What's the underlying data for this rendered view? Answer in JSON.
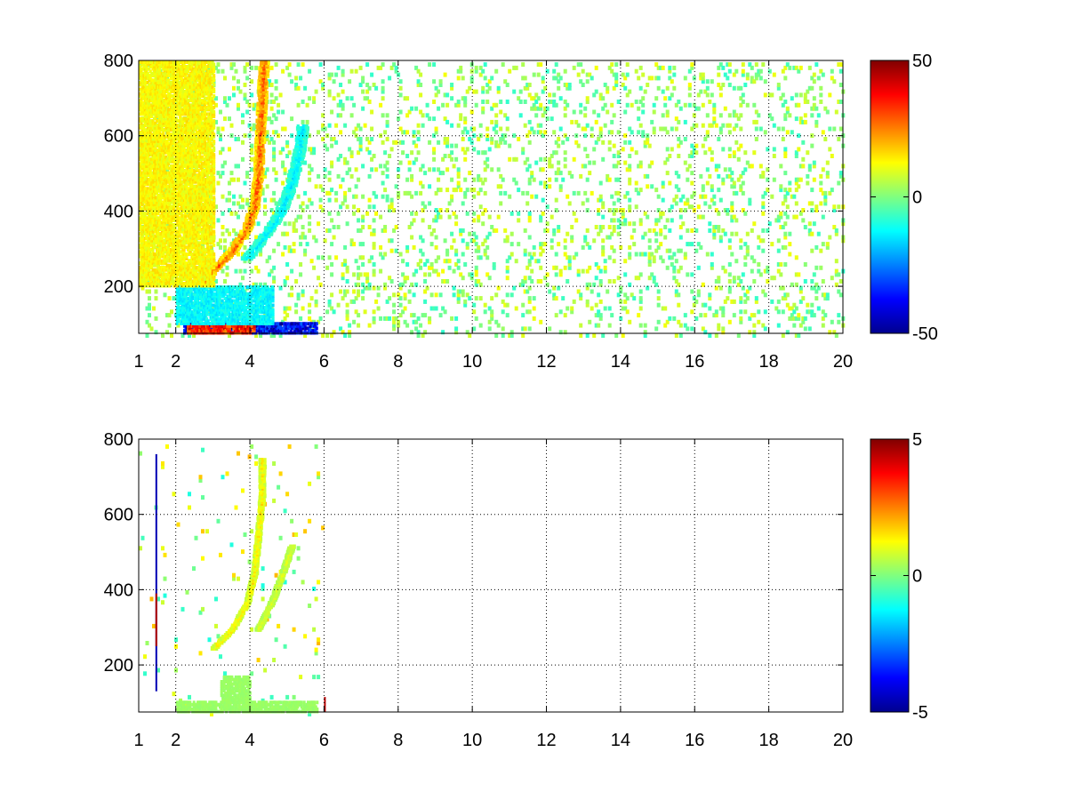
{
  "chart_data": [
    {
      "type": "heatmap",
      "title": "",
      "xlabel": "",
      "ylabel": "",
      "xlim": [
        1,
        20
      ],
      "ylim": [
        75,
        800
      ],
      "x_ticks": [
        {
          "value": 1,
          "label": "1"
        },
        {
          "value": 2,
          "label": "2"
        },
        {
          "value": 4,
          "label": "4"
        },
        {
          "value": 6,
          "label": "6"
        },
        {
          "value": 8,
          "label": "8"
        },
        {
          "value": 10,
          "label": "10"
        },
        {
          "value": 12,
          "label": "12"
        },
        {
          "value": 14,
          "label": "14"
        },
        {
          "value": 16,
          "label": "16"
        },
        {
          "value": 18,
          "label": "18"
        },
        {
          "value": 20,
          "label": "20"
        }
      ],
      "x_grid": [
        2,
        4,
        6,
        8,
        10,
        12,
        14,
        16,
        18
      ],
      "y_ticks": [
        {
          "value": 200,
          "label": "200"
        },
        {
          "value": 400,
          "label": "400"
        },
        {
          "value": 600,
          "label": "600"
        },
        {
          "value": 800,
          "label": "800"
        }
      ],
      "grid": true,
      "colormap": "jet",
      "clim": [
        -50,
        50
      ],
      "colorbar": {
        "position": "right",
        "ticks": [
          {
            "value": 50,
            "label": "50"
          },
          {
            "value": 0,
            "label": "0"
          },
          {
            "value": -50,
            "label": "-50"
          }
        ]
      },
      "features": [
        {
          "kind": "ridge",
          "points": [
            [
              2.6,
              200
            ],
            [
              3.0,
              250
            ],
            [
              3.5,
              300
            ],
            [
              3.9,
              360
            ],
            [
              4.1,
              420
            ],
            [
              4.2,
              500
            ],
            [
              4.25,
              600
            ],
            [
              4.3,
              700
            ],
            [
              4.35,
              800
            ]
          ],
          "value": 30,
          "width": 0.25
        },
        {
          "kind": "ridge",
          "points": [
            [
              3.9,
              280
            ],
            [
              4.3,
              330
            ],
            [
              4.8,
              400
            ],
            [
              5.1,
              480
            ],
            [
              5.3,
              560
            ],
            [
              5.4,
              630
            ]
          ],
          "value": -15,
          "width": 0.3
        },
        {
          "kind": "band",
          "x": [
            2.2,
            5.8
          ],
          "y": [
            75,
            100
          ],
          "value": -45
        },
        {
          "kind": "band",
          "x": [
            2.3,
            4.1
          ],
          "y": [
            75,
            95
          ],
          "value": 40
        },
        {
          "kind": "band",
          "x": [
            2.0,
            4.6
          ],
          "y": [
            100,
            200
          ],
          "value": -15
        },
        {
          "kind": "band",
          "x": [
            1.0,
            3.0
          ],
          "y": [
            200,
            800
          ],
          "value": 15
        }
      ],
      "background": {
        "x": [
          1,
          20
        ],
        "density": 0.12,
        "values": [
          -8,
          12
        ]
      }
    },
    {
      "type": "heatmap",
      "title": "",
      "xlabel": "",
      "ylabel": "",
      "xlim": [
        1,
        20
      ],
      "ylim": [
        75,
        800
      ],
      "x_ticks": [
        {
          "value": 1,
          "label": "1"
        },
        {
          "value": 2,
          "label": "2"
        },
        {
          "value": 4,
          "label": "4"
        },
        {
          "value": 6,
          "label": "6"
        },
        {
          "value": 8,
          "label": "8"
        },
        {
          "value": 10,
          "label": "10"
        },
        {
          "value": 12,
          "label": "12"
        },
        {
          "value": 14,
          "label": "14"
        },
        {
          "value": 16,
          "label": "16"
        },
        {
          "value": 18,
          "label": "18"
        },
        {
          "value": 20,
          "label": "20"
        }
      ],
      "x_grid": [
        2,
        4,
        6,
        8,
        10,
        12,
        14,
        16,
        18
      ],
      "y_ticks": [
        {
          "value": 200,
          "label": "200"
        },
        {
          "value": 400,
          "label": "400"
        },
        {
          "value": 600,
          "label": "600"
        },
        {
          "value": 800,
          "label": "800"
        }
      ],
      "grid": true,
      "colormap": "jet",
      "clim": [
        -5,
        5
      ],
      "colorbar": {
        "position": "right",
        "ticks": [
          {
            "value": 5,
            "label": "5"
          },
          {
            "value": 0,
            "label": "0"
          },
          {
            "value": -5,
            "label": "-5"
          }
        ]
      },
      "features": [
        {
          "kind": "ridge",
          "points": [
            [
              3.0,
              250
            ],
            [
              3.5,
              300
            ],
            [
              3.9,
              370
            ],
            [
              4.1,
              450
            ],
            [
              4.2,
              550
            ],
            [
              4.3,
              650
            ],
            [
              4.3,
              750
            ]
          ],
          "value": 1.5,
          "width": 0.15
        },
        {
          "kind": "ridge",
          "points": [
            [
              4.2,
              300
            ],
            [
              4.6,
              380
            ],
            [
              4.9,
              460
            ],
            [
              5.1,
              520
            ]
          ],
          "value": 1.0,
          "width": 0.15
        },
        {
          "kind": "band",
          "x": [
            2.0,
            5.8
          ],
          "y": [
            75,
            100
          ],
          "value": 0.3
        },
        {
          "kind": "band",
          "x": [
            3.2,
            4.0
          ],
          "y": [
            100,
            170
          ],
          "value": 0.3
        },
        {
          "kind": "line",
          "x": 1.45,
          "y": [
            130,
            760
          ],
          "value": -4.5
        },
        {
          "kind": "line",
          "x": 1.45,
          "y": [
            250,
            390
          ],
          "value": 4.5
        },
        {
          "kind": "line",
          "x": 6.0,
          "y": [
            75,
            115
          ],
          "value": 4.5
        }
      ],
      "background": {
        "x": [
          1,
          6
        ],
        "density": 0.02,
        "values": [
          -1,
          2
        ]
      }
    }
  ]
}
